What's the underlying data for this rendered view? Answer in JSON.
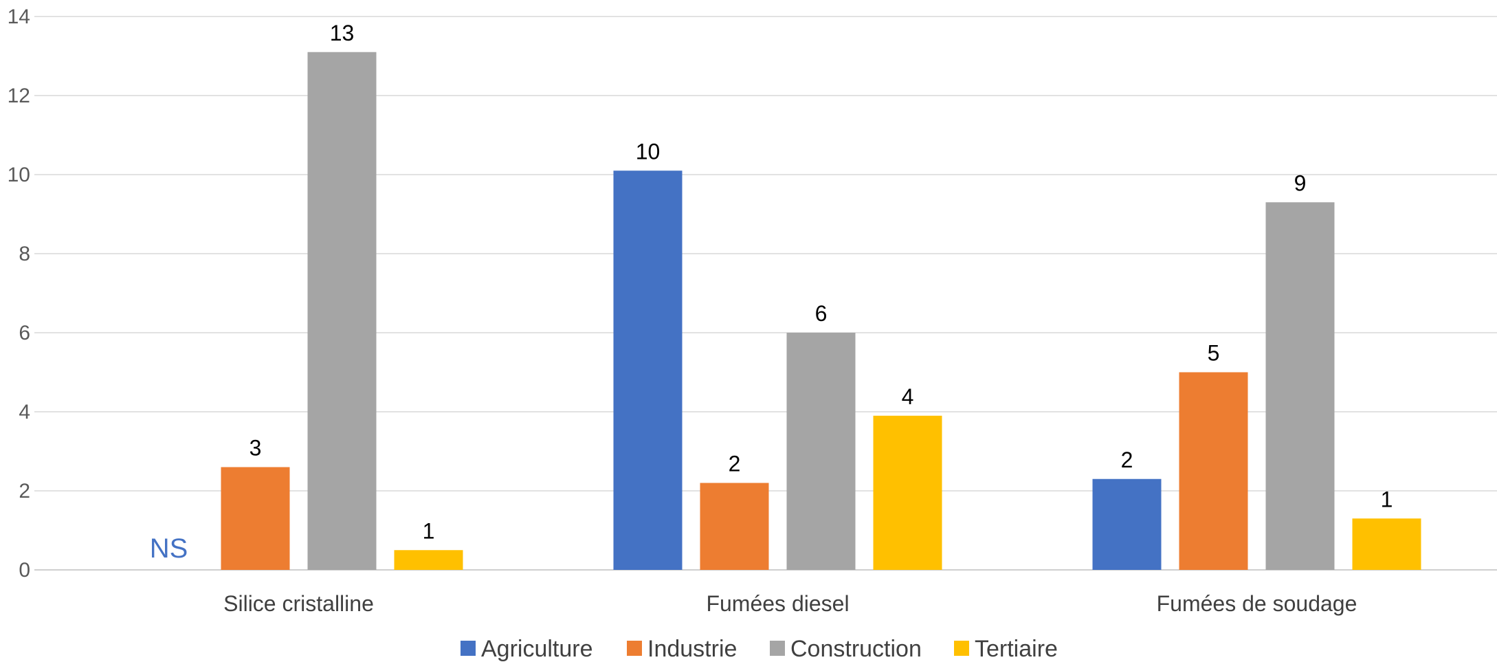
{
  "chart_data": {
    "type": "bar",
    "categories": [
      "Silice cristalline",
      "Fumées diesel",
      "Fumées de soudage"
    ],
    "series": [
      {
        "name": "Agriculture",
        "color": "#4472C4",
        "values": [
          null,
          10.1,
          2.3
        ],
        "labels": [
          "",
          "10",
          "2"
        ]
      },
      {
        "name": "Industrie",
        "color": "#ED7D31",
        "values": [
          2.6,
          2.2,
          5.0
        ],
        "labels": [
          "3",
          "2",
          "5"
        ]
      },
      {
        "name": "Construction",
        "color": "#A5A5A5",
        "values": [
          13.1,
          6.0,
          9.3
        ],
        "labels": [
          "13",
          "6",
          "9"
        ]
      },
      {
        "name": "Tertiaire",
        "color": "#FFC000",
        "values": [
          0.5,
          3.9,
          1.3
        ],
        "labels": [
          "1",
          "4",
          "1"
        ]
      }
    ],
    "annotation": {
      "text": "NS",
      "category": "Silice cristalline",
      "series": "Agriculture",
      "color": "#4472C4"
    },
    "ylim": [
      0,
      14
    ],
    "yticks": [
      0,
      2,
      4,
      6,
      8,
      10,
      12,
      14
    ],
    "title": "",
    "xlabel": "",
    "ylabel": "",
    "grid": true,
    "legend": "bottom"
  }
}
